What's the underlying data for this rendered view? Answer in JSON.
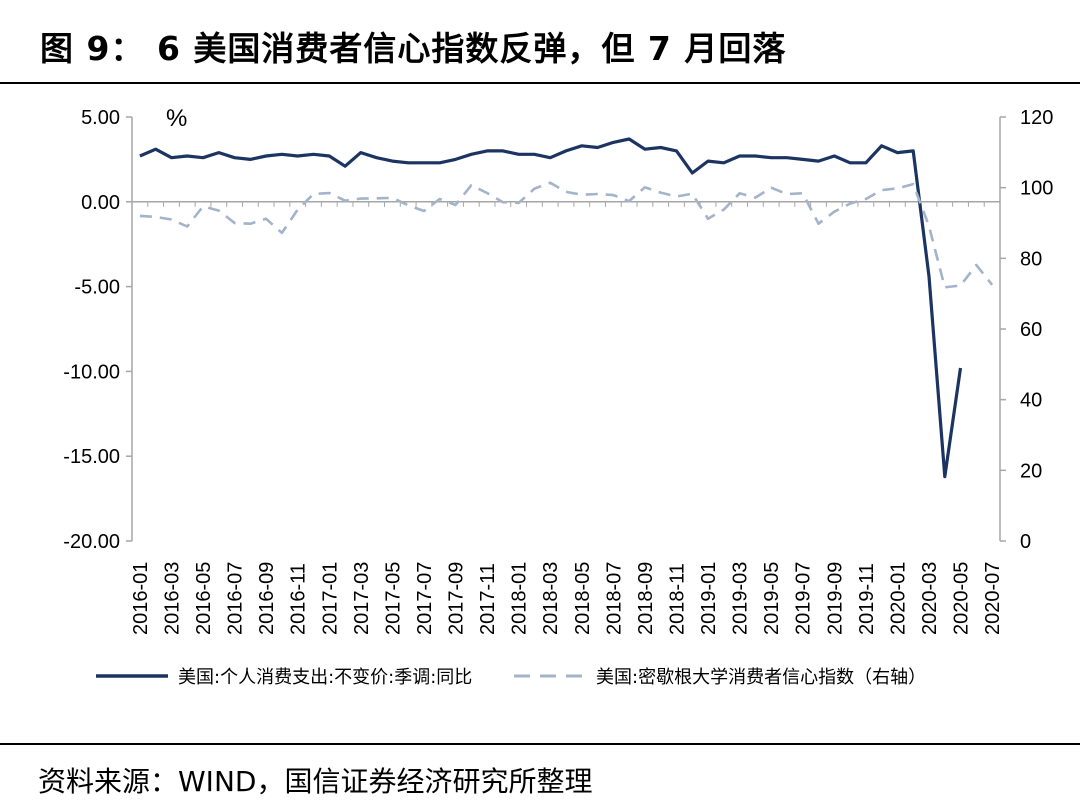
{
  "header": {
    "title": "图 9： 6 美国消费者信心指数反弹，但 7 月回落"
  },
  "footer": {
    "source": "资料来源：WIND，国信证券经济研究所整理"
  },
  "chart_data": {
    "type": "line",
    "left_axis": {
      "unit_label": "%",
      "ylim": [
        -20,
        5
      ],
      "ticks": [
        "5.00",
        "0.00",
        "-5.00",
        "-10.00",
        "-15.00",
        "-20.00"
      ],
      "tick_values": [
        5,
        0,
        -5,
        -10,
        -15,
        -20
      ]
    },
    "right_axis": {
      "ylim": [
        0,
        120
      ],
      "ticks": [
        "120",
        "100",
        "80",
        "60",
        "40",
        "20",
        "0"
      ],
      "tick_values": [
        120,
        100,
        80,
        60,
        40,
        20,
        0
      ]
    },
    "x_labels": [
      "2016-01",
      "2016-03",
      "2016-05",
      "2016-07",
      "2016-09",
      "2016-11",
      "2017-01",
      "2017-03",
      "2017-05",
      "2017-07",
      "2017-09",
      "2017-11",
      "2018-01",
      "2018-03",
      "2018-05",
      "2018-07",
      "2018-09",
      "2018-11",
      "2019-01",
      "2019-03",
      "2019-05",
      "2019-07",
      "2019-09",
      "2019-11",
      "2020-01",
      "2020-03",
      "2020-05",
      "2020-07"
    ],
    "x": [
      "2016-01",
      "2016-02",
      "2016-03",
      "2016-04",
      "2016-05",
      "2016-06",
      "2016-07",
      "2016-08",
      "2016-09",
      "2016-10",
      "2016-11",
      "2016-12",
      "2017-01",
      "2017-02",
      "2017-03",
      "2017-04",
      "2017-05",
      "2017-06",
      "2017-07",
      "2017-08",
      "2017-09",
      "2017-10",
      "2017-11",
      "2017-12",
      "2018-01",
      "2018-02",
      "2018-03",
      "2018-04",
      "2018-05",
      "2018-06",
      "2018-07",
      "2018-08",
      "2018-09",
      "2018-10",
      "2018-11",
      "2018-12",
      "2019-01",
      "2019-02",
      "2019-03",
      "2019-04",
      "2019-05",
      "2019-06",
      "2019-07",
      "2019-08",
      "2019-09",
      "2019-10",
      "2019-11",
      "2019-12",
      "2020-01",
      "2020-02",
      "2020-03",
      "2020-04",
      "2020-05",
      "2020-06",
      "2020-07"
    ],
    "series": [
      {
        "name": "美国:个人消费支出:不变价:季调:同比",
        "axis": "left",
        "style": "solid",
        "color": "#1c3461",
        "values": [
          2.7,
          3.1,
          2.6,
          2.7,
          2.6,
          2.9,
          2.6,
          2.5,
          2.7,
          2.8,
          2.7,
          2.8,
          2.7,
          2.1,
          2.9,
          2.6,
          2.4,
          2.3,
          2.3,
          2.3,
          2.5,
          2.8,
          3.0,
          3.0,
          2.8,
          2.8,
          2.6,
          3.0,
          3.3,
          3.2,
          3.5,
          3.7,
          3.1,
          3.2,
          3.0,
          1.7,
          2.4,
          2.3,
          2.7,
          2.7,
          2.6,
          2.6,
          2.5,
          2.4,
          2.7,
          2.3,
          2.3,
          3.3,
          2.9,
          3.0,
          -4.4,
          -16.2,
          -9.8,
          null,
          null
        ]
      },
      {
        "name": "美国:密歇根大学消费者信心指数（右轴）",
        "axis": "right",
        "style": "dashed",
        "color": "#a3b3c9",
        "values": [
          92,
          91.7,
          91.0,
          89.0,
          94.7,
          93.5,
          90.0,
          89.8,
          91.2,
          87.2,
          93.8,
          98.2,
          98.5,
          96.3,
          96.9,
          97.0,
          97.1,
          95.0,
          93.4,
          96.8,
          95.1,
          100.7,
          98.5,
          95.9,
          95.7,
          99.7,
          101.4,
          98.8,
          98.0,
          98.2,
          97.9,
          96.2,
          100.1,
          98.6,
          97.5,
          98.3,
          91.2,
          93.8,
          98.4,
          97.2,
          100.0,
          98.2,
          98.4,
          89.8,
          93.2,
          95.5,
          96.8,
          99.3,
          99.8,
          101.0,
          89.1,
          71.8,
          72.3,
          78.1,
          72.5
        ]
      }
    ],
    "legend_position": "bottom",
    "grid": false
  },
  "colors": {
    "solid_series": "#1c3461",
    "dashed_series": "#a3b3c9",
    "axis": "#a6a6a6"
  }
}
